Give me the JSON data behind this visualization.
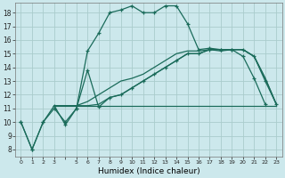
{
  "xlabel": "Humidex (Indice chaleur)",
  "bg_color": "#cce8ec",
  "grid_color": "#aacccc",
  "line_color": "#1a6b5a",
  "xlim": [
    -0.5,
    23.5
  ],
  "ylim": [
    7.5,
    18.7
  ],
  "yticks": [
    8,
    9,
    10,
    11,
    12,
    13,
    14,
    15,
    16,
    17,
    18
  ],
  "line1_x": [
    0,
    1,
    2,
    3,
    4,
    5,
    6,
    7,
    8,
    9,
    10,
    11,
    12,
    13,
    14,
    15,
    16,
    17,
    18,
    19,
    20,
    21,
    22
  ],
  "line1_y": [
    10,
    8,
    10,
    11,
    10,
    11,
    15.2,
    16.5,
    18.0,
    18.2,
    18.5,
    18.0,
    18.0,
    18.5,
    18.5,
    17.2,
    15.3,
    15.4,
    15.3,
    15.3,
    14.8,
    13.2,
    11.3
  ],
  "line2_x": [
    0,
    1,
    2,
    3,
    4,
    5,
    6,
    7,
    8,
    9,
    10,
    11,
    12,
    13,
    14,
    15,
    16,
    17,
    18,
    19,
    20,
    21,
    22,
    23
  ],
  "line2_y": [
    10,
    8,
    10,
    11.2,
    9.8,
    11.0,
    13.8,
    11.1,
    11.8,
    12.0,
    12.5,
    13.0,
    13.5,
    14.0,
    14.5,
    15.0,
    15.0,
    15.3,
    15.3,
    15.3,
    15.3,
    14.8,
    13.0,
    11.3
  ],
  "line3_x": [
    3,
    23
  ],
  "line3_y": [
    11.2,
    11.2
  ],
  "line4_x": [
    3,
    5,
    6,
    7,
    8,
    9,
    10,
    11,
    12,
    13,
    14,
    15,
    16,
    17,
    18,
    19,
    20,
    21,
    22,
    23
  ],
  "line4_y": [
    11.2,
    11.2,
    11.2,
    11.3,
    11.8,
    12.0,
    12.5,
    13.0,
    13.5,
    14.0,
    14.5,
    15.0,
    15.0,
    15.3,
    15.2,
    15.3,
    15.3,
    14.8,
    13.2,
    11.3
  ],
  "line5_x": [
    3,
    5,
    6,
    7,
    8,
    9,
    10,
    11,
    12,
    13,
    14,
    15,
    16,
    17,
    18,
    19,
    20,
    21,
    22,
    23
  ],
  "line5_y": [
    11.2,
    11.2,
    11.5,
    12.0,
    12.5,
    13.0,
    13.2,
    13.5,
    14.0,
    14.5,
    15.0,
    15.2,
    15.2,
    15.3,
    15.3,
    15.3,
    15.3,
    14.8,
    13.2,
    11.3
  ]
}
